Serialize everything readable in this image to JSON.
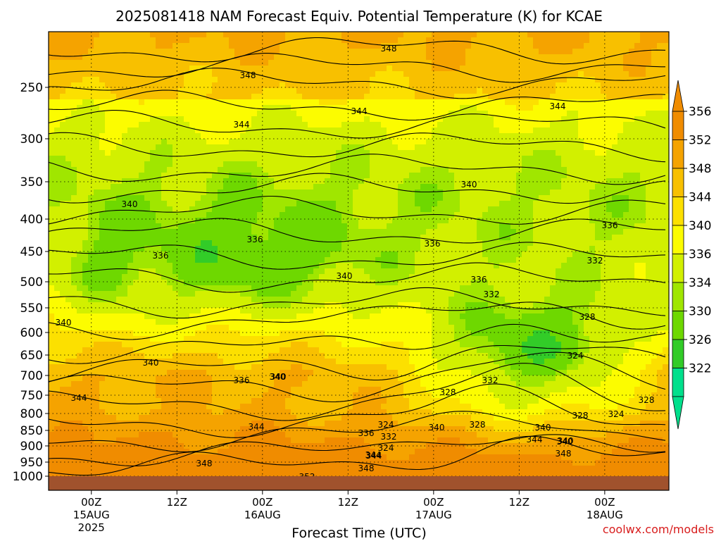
{
  "chart_data": {
    "type": "heatmap",
    "title": "2025081418 NAM Forecast Equiv. Potential Temperature (K) for KCAE",
    "xlabel": "Forecast Time (UTC)",
    "credit": "coolwx.com/models",
    "y_axis": {
      "scale": "pressure (log-like, inverted)",
      "ticks": [
        250,
        300,
        350,
        400,
        450,
        500,
        550,
        600,
        650,
        700,
        750,
        800,
        850,
        900,
        950,
        1000
      ],
      "range": [
        1025,
        180
      ]
    },
    "x_axis": {
      "ticks": [
        {
          "line1": "00Z",
          "line2": "15AUG",
          "line3": "2025"
        },
        {
          "line1": "12Z",
          "line2": "",
          "line3": ""
        },
        {
          "line1": "00Z",
          "line2": "16AUG",
          "line3": ""
        },
        {
          "line1": "12Z",
          "line2": "",
          "line3": ""
        },
        {
          "line1": "00Z",
          "line2": "17AUG",
          "line3": ""
        },
        {
          "line1": "12Z",
          "line2": "",
          "line3": ""
        },
        {
          "line1": "00Z",
          "line2": "18AUG",
          "line3": ""
        }
      ],
      "range_hours": [
        -6,
        81
      ]
    },
    "colorbar": {
      "labels": [
        "356",
        "352",
        "348",
        "344",
        "340",
        "336",
        "334",
        "330",
        "326",
        "322"
      ],
      "bins": [
        {
          "min": 356,
          "color": "#f08c00"
        },
        {
          "min": 352,
          "color": "#f5a300"
        },
        {
          "min": 348,
          "color": "#f8c000"
        },
        {
          "min": 344,
          "color": "#fce000"
        },
        {
          "min": 340,
          "color": "#fcfc00"
        },
        {
          "min": 336,
          "color": "#d2f000"
        },
        {
          "min": 334,
          "color": "#a0e600"
        },
        {
          "min": 330,
          "color": "#6ed800"
        },
        {
          "min": 326,
          "color": "#32cc28"
        },
        {
          "min": 322,
          "color": "#00e08c"
        }
      ],
      "extend": "both"
    },
    "contour_labels": [
      "348",
      "348",
      "344",
      "344",
      "344",
      "340",
      "340",
      "340",
      "340",
      "336",
      "336",
      "336",
      "336",
      "336",
      "332",
      "332",
      "328",
      "328",
      "324",
      "324",
      "324",
      "332",
      "340",
      "340",
      "344",
      "340",
      "344",
      "336",
      "332",
      "340",
      "328",
      "336",
      "344",
      "340",
      "348",
      "328",
      "324",
      "328",
      "348",
      "352",
      "348",
      "344",
      "340",
      "340",
      "344"
    ],
    "ground_band": {
      "from_pressure": 1000,
      "color": "#a0522d"
    }
  }
}
